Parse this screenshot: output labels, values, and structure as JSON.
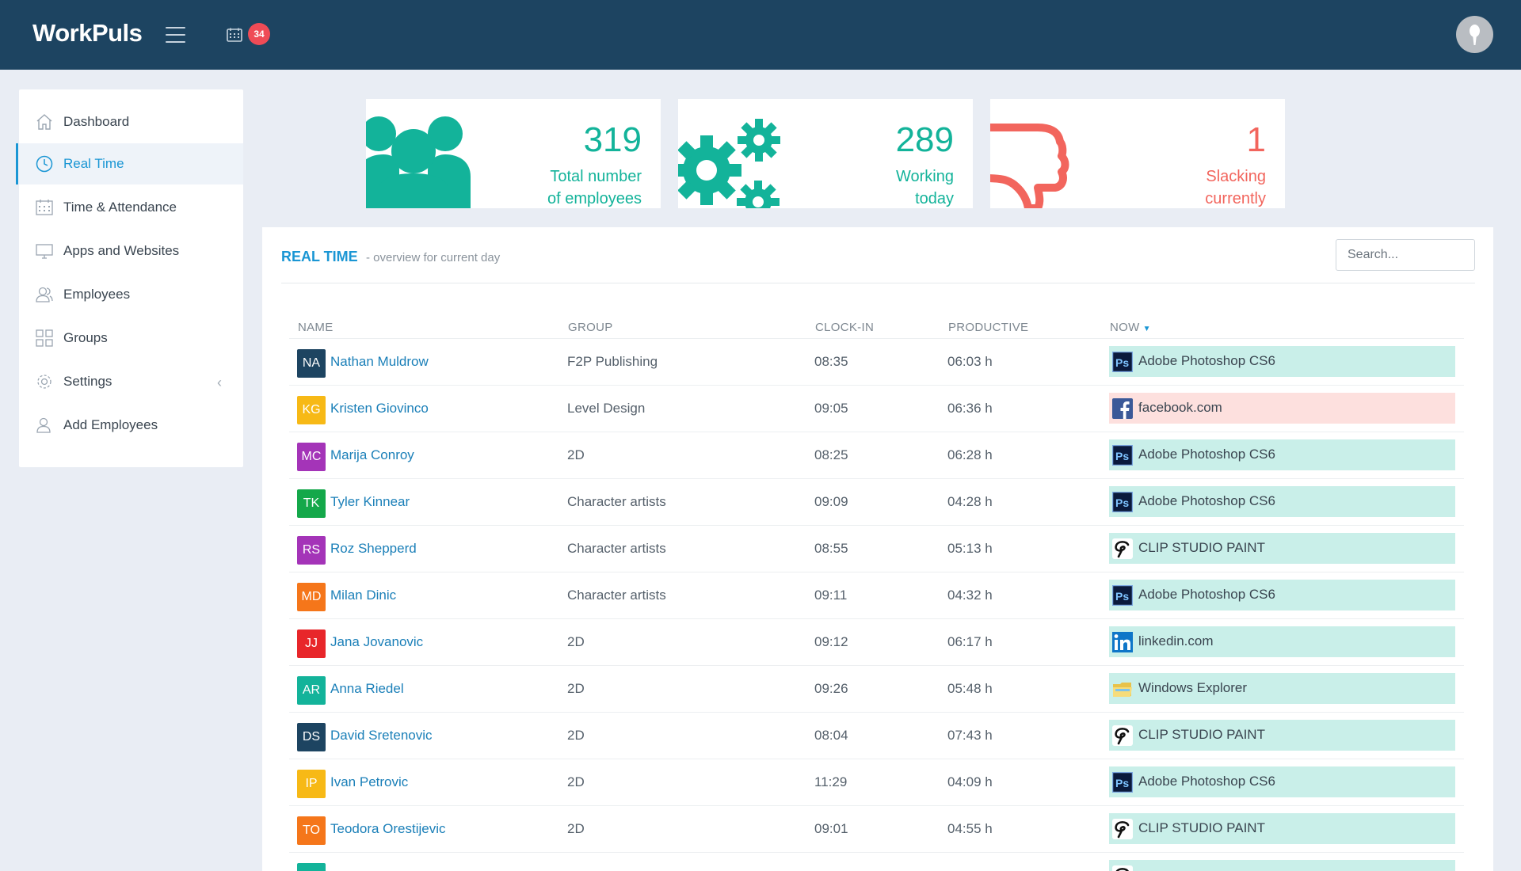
{
  "header": {
    "logo": "WorkPuls",
    "notification_count": "34"
  },
  "sidebar": {
    "items": [
      {
        "label": "Dashboard",
        "icon": "home-icon"
      },
      {
        "label": "Real Time",
        "icon": "clock-icon",
        "active": true
      },
      {
        "label": "Time & Attendance",
        "icon": "calendar-icon"
      },
      {
        "label": "Apps and Websites",
        "icon": "monitor-icon"
      },
      {
        "label": "Employees",
        "icon": "users-icon"
      },
      {
        "label": "Groups",
        "icon": "grid-icon"
      },
      {
        "label": "Settings",
        "icon": "gear-icon",
        "chevron": "‹"
      },
      {
        "label": "Add Employees",
        "icon": "add-user-icon"
      }
    ]
  },
  "stats": [
    {
      "value": "319",
      "line1": "Total number",
      "line2": "of employees",
      "color": "#13b39a",
      "icon": "users-group-icon"
    },
    {
      "value": "289",
      "line1": "Working",
      "line2": "today",
      "color": "#13b39a",
      "icon": "gears-icon"
    },
    {
      "value": "1",
      "line1": "Slacking",
      "line2": "currently",
      "color": "#f2655d",
      "icon": "thumbs-down-icon"
    }
  ],
  "panel": {
    "title": "REAL TIME",
    "subtitle": "- overview for current day",
    "search_placeholder": "Search...",
    "columns": [
      "NAME",
      "GROUP",
      "CLOCK-IN",
      "PRODUCTIVE",
      "NOW"
    ],
    "rows": [
      {
        "initials": "NA",
        "color": "#1d4461",
        "name": "Nathan Muldrow",
        "group": "F2P Publishing",
        "clock_in": "08:35",
        "productive": "06:03 h",
        "now": "Adobe Photoshop CS6",
        "app": "photoshop",
        "status": "productive"
      },
      {
        "initials": "KG",
        "color": "#f7b916",
        "name": "Kristen Giovinco",
        "group": "Level Design",
        "clock_in": "09:05",
        "productive": "06:36 h",
        "now": "facebook.com",
        "app": "facebook",
        "status": "unproductive"
      },
      {
        "initials": "MC",
        "color": "#a434b8",
        "name": "Marija Conroy",
        "group": "2D",
        "clock_in": "08:25",
        "productive": "06:28 h",
        "now": "Adobe Photoshop CS6",
        "app": "photoshop",
        "status": "productive"
      },
      {
        "initials": "TK",
        "color": "#14a84a",
        "name": "Tyler Kinnear",
        "group": "Character artists",
        "clock_in": "09:09",
        "productive": "04:28 h",
        "now": "Adobe Photoshop CS6",
        "app": "photoshop",
        "status": "productive"
      },
      {
        "initials": "RS",
        "color": "#a434b8",
        "name": "Roz Shepperd",
        "group": "Character artists",
        "clock_in": "08:55",
        "productive": "05:13 h",
        "now": "CLIP STUDIO PAINT",
        "app": "clip",
        "status": "productive"
      },
      {
        "initials": "MD",
        "color": "#f5761a",
        "name": "Milan Dinic",
        "group": "Character artists",
        "clock_in": "09:11",
        "productive": "04:32 h",
        "now": "Adobe Photoshop CS6",
        "app": "photoshop",
        "status": "productive"
      },
      {
        "initials": "JJ",
        "color": "#e8262a",
        "name": "Jana Jovanovic",
        "group": "2D",
        "clock_in": "09:12",
        "productive": "06:17 h",
        "now": "linkedin.com",
        "app": "linkedin",
        "status": "productive"
      },
      {
        "initials": "AR",
        "color": "#13b39a",
        "name": "Anna Riedel",
        "group": "2D",
        "clock_in": "09:26",
        "productive": "05:48 h",
        "now": "Windows Explorer",
        "app": "explorer",
        "status": "productive"
      },
      {
        "initials": "DS",
        "color": "#1d4461",
        "name": "David Sretenovic",
        "group": "2D",
        "clock_in": "08:04",
        "productive": "07:43 h",
        "now": "CLIP STUDIO PAINT",
        "app": "clip",
        "status": "productive"
      },
      {
        "initials": "IP",
        "color": "#f7b916",
        "name": "Ivan Petrovic",
        "group": "2D",
        "clock_in": "11:29",
        "productive": "04:09 h",
        "now": "Adobe Photoshop CS6",
        "app": "photoshop",
        "status": "productive"
      },
      {
        "initials": "TO",
        "color": "#f5761a",
        "name": "Teodora Orestijevic",
        "group": "2D",
        "clock_in": "09:01",
        "productive": "04:55 h",
        "now": "CLIP STUDIO PAINT",
        "app": "clip",
        "status": "productive"
      },
      {
        "initials": "",
        "color": "#13b39a",
        "name": "",
        "group": "",
        "clock_in": "",
        "productive": "",
        "now": "",
        "app": "clip",
        "status": "productive"
      }
    ]
  }
}
